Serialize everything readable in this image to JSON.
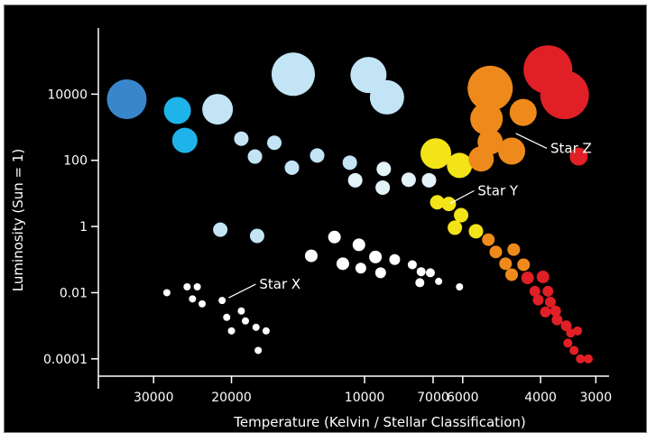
{
  "chart_data": {
    "type": "scatter",
    "title": "",
    "xlabel": "Temperature (Kelvin / Stellar Classification)",
    "ylabel": "Luminosity (Sun = 1)",
    "x_scale": "log-reversed",
    "y_scale": "log",
    "xlim": [
      40000,
      2800
    ],
    "ylim": [
      3e-05,
      1000000
    ],
    "x_ticks": [
      {
        "value": 30000,
        "label": "30000"
      },
      {
        "value": 20000,
        "label": "20000"
      },
      {
        "value": 10000,
        "label": "10000"
      },
      {
        "value": 7000,
        "label": "7000"
      },
      {
        "value": 6000,
        "label": "6000"
      },
      {
        "value": 4000,
        "label": "4000"
      },
      {
        "value": 3000,
        "label": "3000"
      }
    ],
    "y_ticks": [
      {
        "value": 10000,
        "label": "10000"
      },
      {
        "value": 100,
        "label": "100"
      },
      {
        "value": 1,
        "label": "1"
      },
      {
        "value": 0.01,
        "label": "0.01"
      },
      {
        "value": 0.0001,
        "label": "0.0001"
      }
    ],
    "grid": false,
    "stars": [
      {
        "t": 34500,
        "l": 7000,
        "size": 22,
        "color": "#3a86cc"
      },
      {
        "t": 26500,
        "l": 3200,
        "size": 15,
        "color": "#1eb4ea"
      },
      {
        "t": 25500,
        "l": 400,
        "size": 14,
        "color": "#1eb4ea"
      },
      {
        "t": 21500,
        "l": 3500,
        "size": 17,
        "color": "#c2e4f5"
      },
      {
        "t": 14500,
        "l": 40000,
        "size": 24,
        "color": "#c2e4f5"
      },
      {
        "t": 9800,
        "l": 38000,
        "size": 20,
        "color": "#c2e4f5"
      },
      {
        "t": 8900,
        "l": 8000,
        "size": 19,
        "color": "#c2e4f5"
      },
      {
        "t": 19000,
        "l": 450,
        "size": 8,
        "color": "#c2e4f5"
      },
      {
        "t": 16000,
        "l": 340,
        "size": 8,
        "color": "#c2e4f5"
      },
      {
        "t": 17700,
        "l": 130,
        "size": 8,
        "color": "#c2e4f5"
      },
      {
        "t": 12800,
        "l": 140,
        "size": 8,
        "color": "#c2e4f5"
      },
      {
        "t": 14600,
        "l": 60,
        "size": 8,
        "color": "#c2e4f5"
      },
      {
        "t": 10800,
        "l": 85,
        "size": 8,
        "color": "#c2e4f5"
      },
      {
        "t": 9050,
        "l": 55,
        "size": 8,
        "color": "#e3f1f9"
      },
      {
        "t": 10500,
        "l": 25,
        "size": 8,
        "color": "#e3f1f9"
      },
      {
        "t": 9100,
        "l": 15,
        "size": 8,
        "color": "#e3f1f9"
      },
      {
        "t": 7950,
        "l": 26,
        "size": 8,
        "color": "#e3f1f9"
      },
      {
        "t": 7150,
        "l": 25,
        "size": 8,
        "color": "#e3f1f9"
      },
      {
        "t": 6850,
        "l": 5.4,
        "size": 8,
        "color": "#f2e417"
      },
      {
        "t": 6450,
        "l": 4.8,
        "size": 8,
        "color": "#f2e417"
      },
      {
        "t": 6050,
        "l": 2.2,
        "size": 8,
        "color": "#f2e417"
      },
      {
        "t": 6250,
        "l": 0.92,
        "size": 8,
        "color": "#f2e417"
      },
      {
        "t": 5600,
        "l": 0.72,
        "size": 8,
        "color": "#f2e417"
      },
      {
        "t": 6900,
        "l": 160,
        "size": 17,
        "color": "#f2e417"
      },
      {
        "t": 6100,
        "l": 70,
        "size": 14,
        "color": "#f2e417"
      },
      {
        "t": 5200,
        "l": 15000,
        "size": 25,
        "color": "#ee8a1b"
      },
      {
        "t": 5300,
        "l": 1800,
        "size": 18,
        "color": "#ee8a1b"
      },
      {
        "t": 4380,
        "l": 2800,
        "size": 15,
        "color": "#ee8a1b"
      },
      {
        "t": 5200,
        "l": 360,
        "size": 14,
        "color": "#ee8a1b"
      },
      {
        "t": 5450,
        "l": 110,
        "size": 14,
        "color": "#ee8a1b"
      },
      {
        "t": 4650,
        "l": 190,
        "size": 15,
        "color": "#ee8a1b"
      },
      {
        "t": 3850,
        "l": 55000,
        "size": 27,
        "color": "#e11f26"
      },
      {
        "t": 3530,
        "l": 9500,
        "size": 27,
        "color": "#e11f26"
      },
      {
        "t": 3280,
        "l": 130,
        "size": 10,
        "color": "#e11f26"
      },
      {
        "t": 5250,
        "l": 0.4,
        "size": 7,
        "color": "#ee8a1b"
      },
      {
        "t": 5050,
        "l": 0.17,
        "size": 7,
        "color": "#ee8a1b"
      },
      {
        "t": 4600,
        "l": 0.2,
        "size": 7,
        "color": "#ee8a1b"
      },
      {
        "t": 4800,
        "l": 0.075,
        "size": 7,
        "color": "#ee8a1b"
      },
      {
        "t": 4370,
        "l": 0.07,
        "size": 7,
        "color": "#ee8a1b"
      },
      {
        "t": 4650,
        "l": 0.035,
        "size": 7,
        "color": "#ee8a1b"
      },
      {
        "t": 4280,
        "l": 0.028,
        "size": 7,
        "color": "#e11f26"
      },
      {
        "t": 3950,
        "l": 0.03,
        "size": 7,
        "color": "#e11f26"
      },
      {
        "t": 4120,
        "l": 0.011,
        "size": 6,
        "color": "#e11f26"
      },
      {
        "t": 3850,
        "l": 0.011,
        "size": 6,
        "color": "#e11f26"
      },
      {
        "t": 4050,
        "l": 0.006,
        "size": 6,
        "color": "#e11f26"
      },
      {
        "t": 3800,
        "l": 0.0052,
        "size": 6,
        "color": "#e11f26"
      },
      {
        "t": 3700,
        "l": 0.0028,
        "size": 6,
        "color": "#e11f26"
      },
      {
        "t": 3900,
        "l": 0.0026,
        "size": 6,
        "color": "#e11f26"
      },
      {
        "t": 3670,
        "l": 0.0015,
        "size": 6,
        "color": "#e11f26"
      },
      {
        "t": 3500,
        "l": 0.001,
        "size": 6,
        "color": "#e11f26"
      },
      {
        "t": 3420,
        "l": 0.0006,
        "size": 5,
        "color": "#e11f26"
      },
      {
        "t": 3300,
        "l": 0.0007,
        "size": 5,
        "color": "#e11f26"
      },
      {
        "t": 3470,
        "l": 0.0003,
        "size": 5,
        "color": "#e11f26"
      },
      {
        "t": 3360,
        "l": 0.00018,
        "size": 5,
        "color": "#e11f26"
      },
      {
        "t": 3250,
        "l": 0.0001,
        "size": 5,
        "color": "#e11f26"
      },
      {
        "t": 3120,
        "l": 0.0001,
        "size": 5,
        "color": "#e11f26"
      },
      {
        "t": 21200,
        "l": 0.8,
        "size": 8,
        "color": "#c2e4f5"
      },
      {
        "t": 17500,
        "l": 0.52,
        "size": 8,
        "color": "#c2e4f5"
      },
      {
        "t": 11700,
        "l": 0.48,
        "size": 7,
        "color": "#ffffff"
      },
      {
        "t": 10300,
        "l": 0.28,
        "size": 7,
        "color": "#ffffff"
      },
      {
        "t": 13200,
        "l": 0.13,
        "size": 7,
        "color": "#ffffff"
      },
      {
        "t": 11200,
        "l": 0.075,
        "size": 7,
        "color": "#ffffff"
      },
      {
        "t": 9450,
        "l": 0.12,
        "size": 7,
        "color": "#ffffff"
      },
      {
        "t": 8550,
        "l": 0.1,
        "size": 6,
        "color": "#ffffff"
      },
      {
        "t": 7800,
        "l": 0.07,
        "size": 5,
        "color": "#ffffff"
      },
      {
        "t": 7450,
        "l": 0.043,
        "size": 5,
        "color": "#ffffff"
      },
      {
        "t": 7100,
        "l": 0.04,
        "size": 5,
        "color": "#ffffff"
      },
      {
        "t": 10200,
        "l": 0.055,
        "size": 6,
        "color": "#ffffff"
      },
      {
        "t": 9200,
        "l": 0.04,
        "size": 6,
        "color": "#ffffff"
      },
      {
        "t": 7500,
        "l": 0.02,
        "size": 5,
        "color": "#ffffff"
      },
      {
        "t": 6800,
        "l": 0.022,
        "size": 4,
        "color": "#ffffff"
      },
      {
        "t": 6100,
        "l": 0.015,
        "size": 4,
        "color": "#ffffff"
      },
      {
        "t": 28000,
        "l": 0.01,
        "size": 4,
        "color": "#ffffff"
      },
      {
        "t": 25200,
        "l": 0.015,
        "size": 4,
        "color": "#ffffff"
      },
      {
        "t": 23900,
        "l": 0.015,
        "size": 4,
        "color": "#ffffff"
      },
      {
        "t": 24500,
        "l": 0.0065,
        "size": 4,
        "color": "#ffffff"
      },
      {
        "t": 23300,
        "l": 0.0046,
        "size": 4,
        "color": "#ffffff"
      },
      {
        "t": 21000,
        "l": 0.0058,
        "size": 4,
        "color": "#ffffff"
      },
      {
        "t": 20500,
        "l": 0.0018,
        "size": 4,
        "color": "#ffffff"
      },
      {
        "t": 19000,
        "l": 0.0028,
        "size": 4,
        "color": "#ffffff"
      },
      {
        "t": 20000,
        "l": 0.0007,
        "size": 4,
        "color": "#ffffff"
      },
      {
        "t": 18600,
        "l": 0.0014,
        "size": 4,
        "color": "#ffffff"
      },
      {
        "t": 17600,
        "l": 0.0009,
        "size": 4,
        "color": "#ffffff"
      },
      {
        "t": 16700,
        "l": 0.0007,
        "size": 4,
        "color": "#ffffff"
      },
      {
        "t": 17400,
        "l": 0.00018,
        "size": 4,
        "color": "#ffffff"
      }
    ],
    "annotations": [
      {
        "text": "Star Z",
        "t": 4550,
        "l": 650,
        "tx": 3800,
        "tl": 230
      },
      {
        "text": "Star Y",
        "t": 6400,
        "l": 5,
        "tx": 5550,
        "tl": 12
      },
      {
        "text": "Star X",
        "t": 20300,
        "l": 0.007,
        "tx": 17300,
        "tl": 0.018
      }
    ]
  }
}
